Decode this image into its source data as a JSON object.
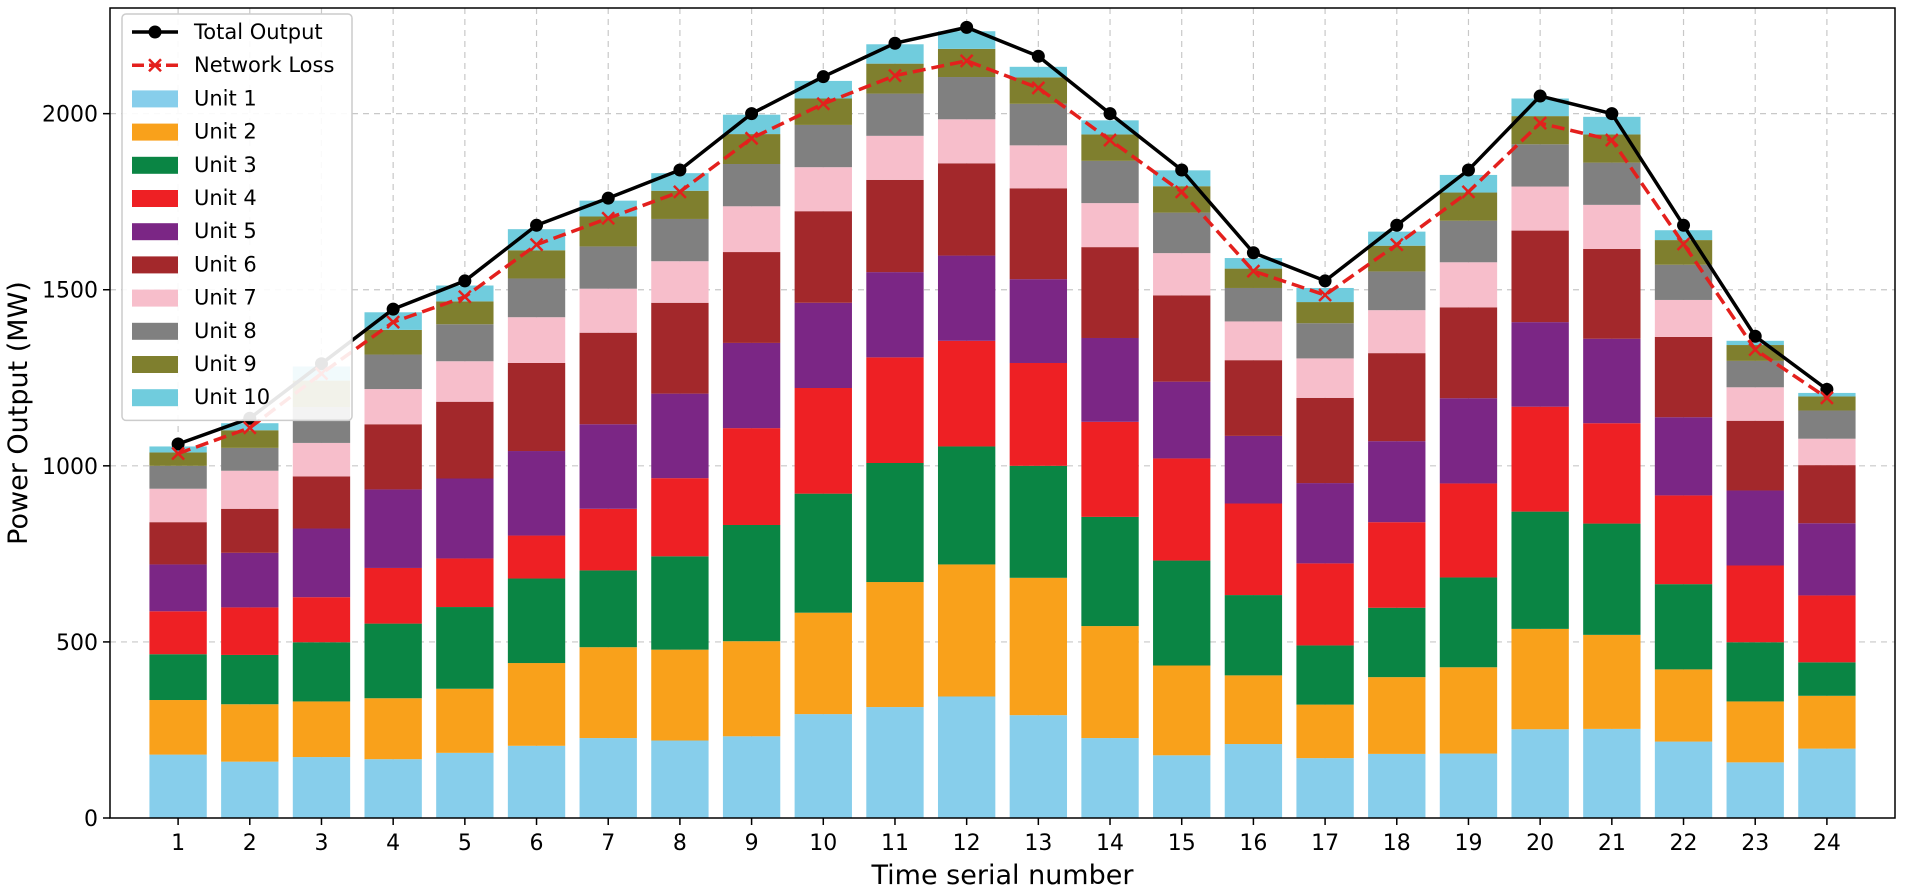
{
  "chart_data": {
    "type": "bar",
    "stacked": true,
    "title": "",
    "xlabel": "Time serial number",
    "ylabel": "Power Output (MW)",
    "ylim": [
      0,
      2300
    ],
    "yticks": [
      0,
      500,
      1000,
      1500,
      2000
    ],
    "grid": true,
    "legend_position": "top-left",
    "categories": [
      "1",
      "2",
      "3",
      "4",
      "5",
      "6",
      "7",
      "8",
      "9",
      "10",
      "11",
      "12",
      "13",
      "14",
      "15",
      "16",
      "17",
      "18",
      "19",
      "20",
      "21",
      "22",
      "23",
      "24"
    ],
    "series": [
      {
        "name": "Unit 1",
        "color": "#87CEEB",
        "values": [
          180,
          160,
          173,
          167,
          185,
          205,
          227,
          220,
          232,
          295,
          315,
          345,
          292,
          227,
          178,
          210,
          170,
          182,
          183,
          252,
          253,
          217,
          158,
          197
        ]
      },
      {
        "name": "Unit 2",
        "color": "#F9A11B",
        "values": [
          155,
          163,
          158,
          173,
          182,
          235,
          258,
          258,
          270,
          288,
          355,
          375,
          390,
          318,
          255,
          195,
          152,
          218,
          245,
          285,
          267,
          205,
          173,
          150
        ]
      },
      {
        "name": "Unit 3",
        "color": "#0A8544",
        "values": [
          130,
          140,
          168,
          212,
          232,
          240,
          218,
          265,
          330,
          338,
          338,
          335,
          318,
          310,
          298,
          228,
          168,
          197,
          255,
          333,
          316,
          242,
          168,
          95
        ]
      },
      {
        "name": "Unit 4",
        "color": "#EE2024",
        "values": [
          122,
          135,
          128,
          158,
          138,
          122,
          175,
          222,
          275,
          300,
          300,
          300,
          292,
          270,
          290,
          260,
          233,
          243,
          267,
          298,
          285,
          252,
          218,
          190
        ]
      },
      {
        "name": "Unit 5",
        "color": "#7B2685",
        "values": [
          133,
          155,
          195,
          223,
          227,
          240,
          240,
          240,
          242,
          242,
          242,
          242,
          238,
          238,
          218,
          192,
          228,
          230,
          242,
          240,
          240,
          222,
          213,
          205
        ]
      },
      {
        "name": "Unit 6",
        "color": "#A3282B",
        "values": [
          120,
          125,
          148,
          185,
          218,
          250,
          260,
          258,
          258,
          260,
          262,
          262,
          258,
          258,
          245,
          215,
          242,
          250,
          258,
          260,
          255,
          228,
          198,
          165
        ]
      },
      {
        "name": "Unit 7",
        "color": "#F7BECB",
        "values": [
          95,
          108,
          95,
          100,
          115,
          130,
          125,
          118,
          130,
          125,
          125,
          125,
          122,
          125,
          120,
          110,
          112,
          122,
          128,
          125,
          125,
          105,
          95,
          75
        ]
      },
      {
        "name": "Unit 8",
        "color": "#808080",
        "values": [
          65,
          65,
          102,
          98,
          105,
          110,
          120,
          120,
          120,
          120,
          120,
          120,
          118,
          120,
          115,
          95,
          100,
          110,
          118,
          120,
          120,
          100,
          75,
          80
        ]
      },
      {
        "name": "Unit 9",
        "color": "#7F7F2E",
        "values": [
          38,
          50,
          75,
          70,
          65,
          80,
          85,
          80,
          85,
          75,
          85,
          80,
          75,
          75,
          75,
          55,
          60,
          73,
          80,
          80,
          80,
          70,
          45,
          40
        ]
      },
      {
        "name": "Unit 10",
        "color": "#70CCDD",
        "values": [
          17,
          20,
          40,
          50,
          45,
          60,
          45,
          50,
          55,
          50,
          55,
          50,
          30,
          40,
          45,
          30,
          40,
          40,
          50,
          50,
          50,
          28,
          12,
          10
        ]
      }
    ],
    "lines": [
      {
        "name": "Total Output",
        "color": "#000000",
        "style": "solid",
        "marker": "circle",
        "values": [
          1062,
          1135,
          1290,
          1445,
          1525,
          1683,
          1760,
          1840,
          2000,
          2105,
          2200,
          2245,
          2163,
          2000,
          1840,
          1605,
          1525,
          1683,
          1840,
          2050,
          2000,
          1683,
          1368,
          1217
        ]
      },
      {
        "name": "Network Loss",
        "color": "#E3201D",
        "style": "dashed",
        "marker": "x",
        "values": [
          1035,
          1108,
          1262,
          1408,
          1480,
          1628,
          1703,
          1778,
          1930,
          2028,
          2108,
          2150,
          2073,
          1925,
          1778,
          1553,
          1485,
          1628,
          1778,
          1973,
          1925,
          1630,
          1330,
          1193
        ]
      }
    ]
  }
}
